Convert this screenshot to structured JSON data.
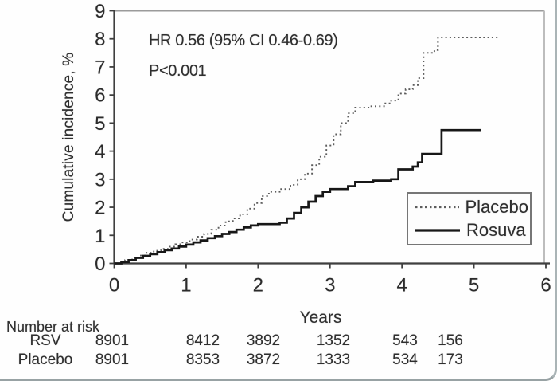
{
  "annotation": {
    "hr_line": "HR 0.56 (95% CI 0.46-0.69)",
    "p_line": "P<0.001"
  },
  "chart_data": {
    "type": "line",
    "subtype": "kaplan-meier-cumulative-incidence",
    "title": "",
    "xlabel": "Years",
    "ylabel": "Cumulative incidence, %",
    "xlim": [
      0,
      6
    ],
    "ylim": [
      0,
      9
    ],
    "x_ticks": [
      0,
      1,
      2,
      3,
      4,
      5,
      6
    ],
    "y_ticks": [
      0,
      1,
      2,
      3,
      4,
      5,
      6,
      7,
      8,
      9
    ],
    "grid": false,
    "legend_position": "lower-right-box",
    "annotations": [
      "HR 0.56 (95% CI 0.46-0.69)",
      "P<0.001"
    ],
    "series": [
      {
        "name": "Placebo",
        "style": "dotted",
        "color": "#5c5c5c",
        "width": 1.9,
        "step": true,
        "points": [
          [
            0,
            0
          ],
          [
            0.08,
            0.05
          ],
          [
            0.15,
            0.12
          ],
          [
            0.25,
            0.2
          ],
          [
            0.35,
            0.28
          ],
          [
            0.45,
            0.38
          ],
          [
            0.55,
            0.45
          ],
          [
            0.65,
            0.52
          ],
          [
            0.75,
            0.6
          ],
          [
            0.85,
            0.68
          ],
          [
            0.95,
            0.75
          ],
          [
            1.05,
            0.85
          ],
          [
            1.15,
            0.95
          ],
          [
            1.25,
            1.05
          ],
          [
            1.35,
            1.2
          ],
          [
            1.45,
            1.35
          ],
          [
            1.55,
            1.5
          ],
          [
            1.65,
            1.6
          ],
          [
            1.75,
            1.75
          ],
          [
            1.85,
            1.95
          ],
          [
            1.95,
            2.15
          ],
          [
            2.05,
            2.4
          ],
          [
            2.15,
            2.55
          ],
          [
            2.3,
            2.65
          ],
          [
            2.45,
            2.8
          ],
          [
            2.55,
            3.0
          ],
          [
            2.65,
            3.2
          ],
          [
            2.75,
            3.5
          ],
          [
            2.85,
            3.8
          ],
          [
            2.95,
            4.2
          ],
          [
            3.05,
            4.6
          ],
          [
            3.15,
            5.0
          ],
          [
            3.25,
            5.35
          ],
          [
            3.35,
            5.55
          ],
          [
            3.55,
            5.6
          ],
          [
            3.75,
            5.7
          ],
          [
            3.85,
            5.8
          ],
          [
            3.95,
            6.05
          ],
          [
            4.05,
            6.2
          ],
          [
            4.15,
            6.35
          ],
          [
            4.22,
            6.6
          ],
          [
            4.3,
            7.5
          ],
          [
            4.45,
            7.6
          ],
          [
            4.5,
            8.05
          ],
          [
            5.35,
            8.05
          ]
        ]
      },
      {
        "name": "Rosuva",
        "style": "solid",
        "color": "#171717",
        "width": 2.7,
        "step": true,
        "points": [
          [
            0,
            0
          ],
          [
            0.1,
            0.05
          ],
          [
            0.2,
            0.12
          ],
          [
            0.3,
            0.2
          ],
          [
            0.4,
            0.27
          ],
          [
            0.5,
            0.33
          ],
          [
            0.6,
            0.4
          ],
          [
            0.7,
            0.47
          ],
          [
            0.8,
            0.53
          ],
          [
            0.9,
            0.6
          ],
          [
            1.0,
            0.67
          ],
          [
            1.1,
            0.75
          ],
          [
            1.2,
            0.82
          ],
          [
            1.3,
            0.9
          ],
          [
            1.4,
            0.97
          ],
          [
            1.5,
            1.05
          ],
          [
            1.6,
            1.12
          ],
          [
            1.7,
            1.2
          ],
          [
            1.8,
            1.28
          ],
          [
            1.9,
            1.35
          ],
          [
            2.0,
            1.4
          ],
          [
            2.3,
            1.45
          ],
          [
            2.4,
            1.6
          ],
          [
            2.5,
            1.8
          ],
          [
            2.6,
            2.0
          ],
          [
            2.7,
            2.2
          ],
          [
            2.8,
            2.4
          ],
          [
            2.9,
            2.55
          ],
          [
            3.0,
            2.65
          ],
          [
            3.25,
            2.75
          ],
          [
            3.35,
            2.9
          ],
          [
            3.6,
            2.95
          ],
          [
            3.85,
            3.0
          ],
          [
            3.95,
            3.35
          ],
          [
            4.15,
            3.45
          ],
          [
            4.22,
            3.6
          ],
          [
            4.28,
            3.9
          ],
          [
            4.55,
            4.75
          ],
          [
            5.1,
            4.75
          ]
        ]
      }
    ]
  },
  "risk_table": {
    "header": "Number at risk",
    "rows": [
      {
        "label": "RSV",
        "values": [
          "8901",
          "8412",
          "3892",
          "1352",
          "543",
          "156"
        ]
      },
      {
        "label": "Placebo",
        "values": [
          "8901",
          "8353",
          "3872",
          "1333",
          "534",
          "173"
        ]
      }
    ]
  },
  "colors": {
    "axis": "#3f3f3f",
    "frame_top": "#9b9b9b",
    "frame_right": "#bdbdbd",
    "text": "#2b2b2b"
  }
}
